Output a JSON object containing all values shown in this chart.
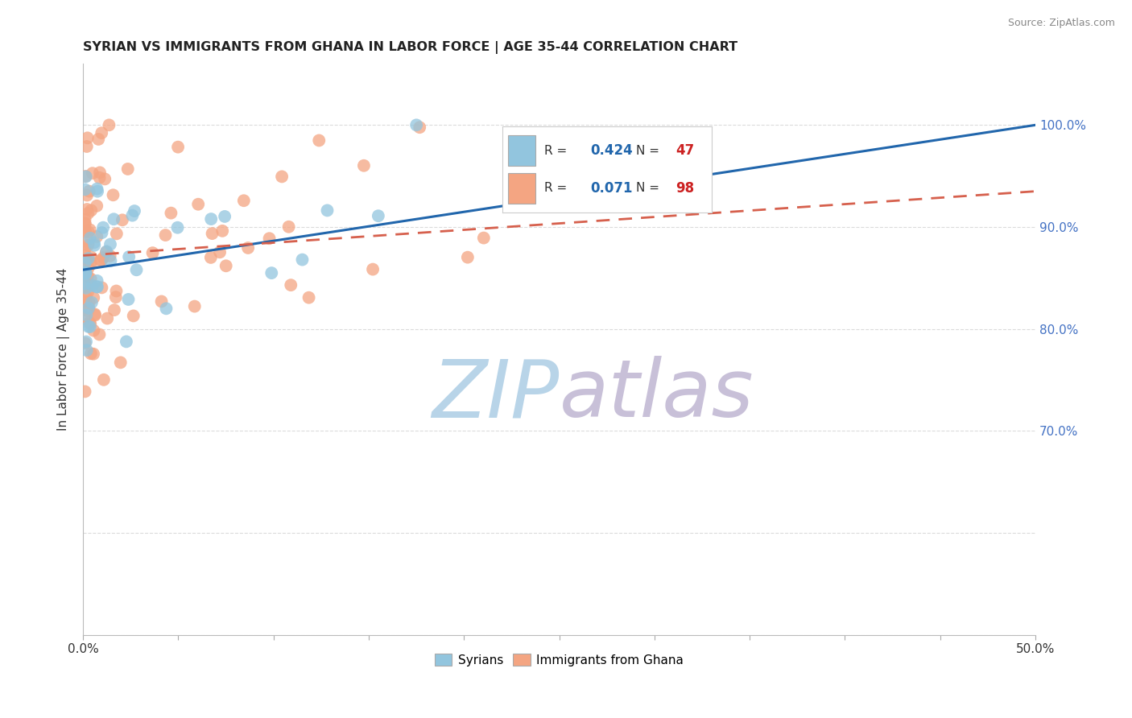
{
  "title": "SYRIAN VS IMMIGRANTS FROM GHANA IN LABOR FORCE | AGE 35-44 CORRELATION CHART",
  "source": "Source: ZipAtlas.com",
  "ylabel": "In Labor Force | Age 35-44",
  "xmin": 0.0,
  "xmax": 0.5,
  "ymin": 0.5,
  "ymax": 1.06,
  "syrians_R": 0.424,
  "syrians_N": 47,
  "ghana_R": 0.071,
  "ghana_N": 98,
  "syrian_color": "#92c5de",
  "ghana_color": "#f4a582",
  "syrian_line_color": "#2166ac",
  "ghana_line_color": "#d6604d",
  "watermark_zip_color": "#b8d4e8",
  "watermark_atlas_color": "#c8c0d8",
  "legend_R_color": "#2166ac",
  "legend_N_color": "#cc2222",
  "background_color": "#ffffff",
  "grid_color": "#cccccc",
  "right_ytick_positions": [
    0.7,
    0.8,
    0.9,
    1.0
  ],
  "right_ytick_labels": [
    "70.0%",
    "80.0%",
    "90.0%",
    "100.0%"
  ],
  "syr_line_x0": 0.0,
  "syr_line_y0": 0.858,
  "syr_line_x1": 0.5,
  "syr_line_y1": 1.0,
  "gha_line_x0": 0.0,
  "gha_line_y0": 0.872,
  "gha_line_x1": 0.5,
  "gha_line_y1": 0.935
}
